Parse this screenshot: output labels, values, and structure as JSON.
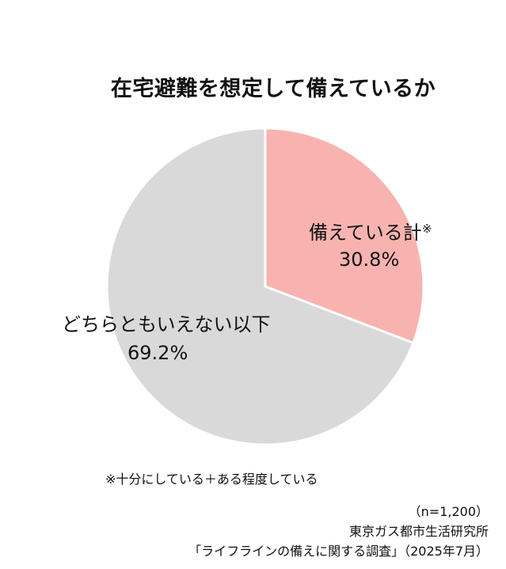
{
  "chart_data": {
    "type": "pie",
    "title": "在宅避難を想定して備えているか",
    "slices": [
      {
        "label": "備えている計",
        "marker": "※",
        "value": 30.8,
        "value_label": "30.8%",
        "color": "#f8b3b0"
      },
      {
        "label": "どちらともいえない以下",
        "marker": "",
        "value": 69.2,
        "value_label": "69.2%",
        "color": "#d9d9d9"
      }
    ],
    "start_angle": "12 o'clock",
    "direction": "clockwise",
    "slice_border_color": "#ffffff"
  },
  "footnote": "※十分にしている＋ある程度している",
  "source": {
    "sample": "（n=1,200）",
    "organization": "東京ガス都市生活研究所",
    "survey": "「ライフラインの備えに関する調査」（2025年7月）"
  }
}
